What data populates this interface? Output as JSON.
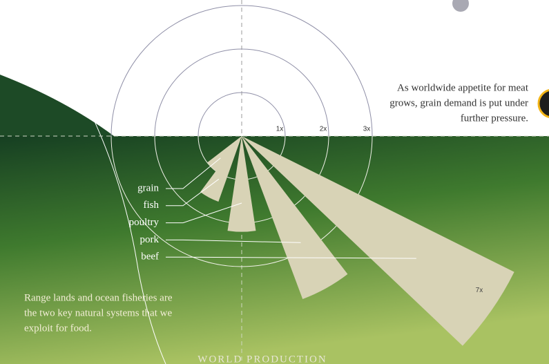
{
  "chart_data": {
    "type": "radial-bar",
    "categories": [
      "grain",
      "fish",
      "poultry",
      "pork",
      "beef"
    ],
    "values": [
      1,
      1.6,
      2.2,
      4,
      7
    ],
    "value_labels": [
      null,
      null,
      null,
      null,
      "7x"
    ],
    "color": "#d8d3b6",
    "ylim": [
      0,
      7
    ],
    "yticks": [
      {
        "value": 1,
        "label": "1x"
      },
      {
        "value": 2,
        "label": "2x"
      },
      {
        "value": 3,
        "label": "3x"
      }
    ],
    "annotations": [
      "As worldwide appetite for meat",
      "grows, grain demand is put under",
      "further pressure.",
      "Range lands and ocean fisheries are",
      "the two key natural systems that we",
      "exploit for food."
    ],
    "footer": "WORLD PRODUCTION"
  }
}
